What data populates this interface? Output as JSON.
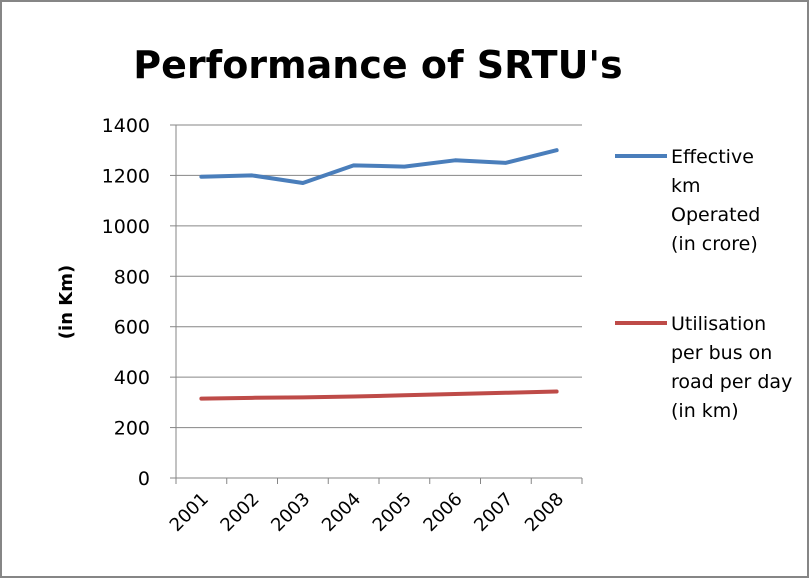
{
  "chart_data": {
    "type": "line",
    "title": "Performance of SRTU's",
    "y_label": "(in Km)",
    "categories": [
      "2001",
      "2002",
      "2003",
      "2004",
      "2005",
      "2006",
      "2007",
      "2008"
    ],
    "series": [
      {
        "name": "Effective km Operated (in crore)",
        "color": "#4a7ebb",
        "values": [
          1195,
          1200,
          1170,
          1240,
          1235,
          1260,
          1250,
          1300
        ]
      },
      {
        "name": "Utilisation per bus on road per day (in km)",
        "color": "#be4b48",
        "values": [
          315,
          318,
          320,
          323,
          328,
          333,
          338,
          343
        ]
      }
    ],
    "ylim": [
      0,
      1400
    ],
    "yticks": [
      0,
      200,
      400,
      600,
      800,
      1000,
      1200,
      1400
    ],
    "grid": true,
    "legend": "right"
  }
}
